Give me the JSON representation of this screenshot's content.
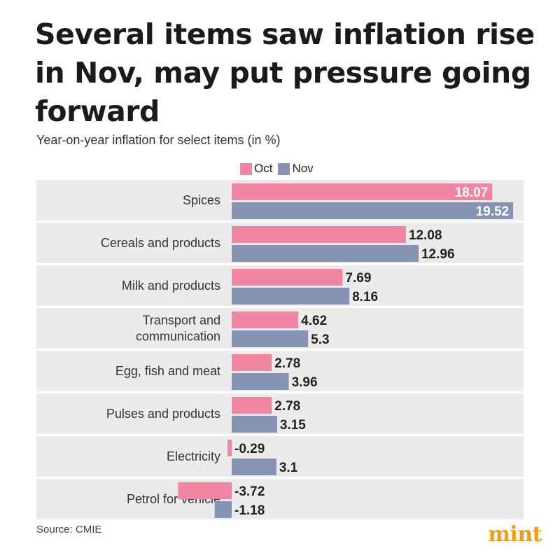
{
  "title": "Several items saw inflation rise in Nov, may put pressure going forward",
  "subtitle": "Year-on-year inflation for select items (in %)",
  "source": "Source: CMIE",
  "logo": "mint",
  "colors": {
    "oct": "#f086a1",
    "nov": "#8593b5",
    "row_bg": "#ebebeb"
  },
  "chart_data": {
    "type": "bar",
    "orientation": "horizontal",
    "categories": [
      "Spices",
      "Cereals and products",
      "Milk and products",
      "Transport and communication",
      "Egg, fish and meat",
      "Pulses and products",
      "Electricity",
      "Petrol for vehicle"
    ],
    "category_lines": [
      [
        "Spices"
      ],
      [
        "Cereals and products"
      ],
      [
        "Milk and products"
      ],
      [
        "Transport and",
        "communication"
      ],
      [
        "Egg, fish and meat"
      ],
      [
        "Pulses and products"
      ],
      [
        "Electricity"
      ],
      [
        "Petrol for vehicle"
      ]
    ],
    "series": [
      {
        "name": "Oct",
        "values": [
          18.07,
          12.08,
          7.69,
          4.62,
          2.78,
          2.78,
          -0.29,
          -3.72
        ],
        "labels": [
          "18.07",
          "12.08",
          "7.69",
          "4.62",
          "2.78",
          "2.78",
          "-0.29",
          "-3.72"
        ]
      },
      {
        "name": "Nov",
        "values": [
          19.52,
          12.96,
          8.16,
          5.3,
          3.96,
          3.15,
          3.1,
          -1.18
        ],
        "labels": [
          "19.52",
          "12.96",
          "8.16",
          "5.3",
          "3.96",
          "3.15",
          "3.1",
          "-1.18"
        ]
      }
    ],
    "legend_position": "top",
    "grid": false
  }
}
